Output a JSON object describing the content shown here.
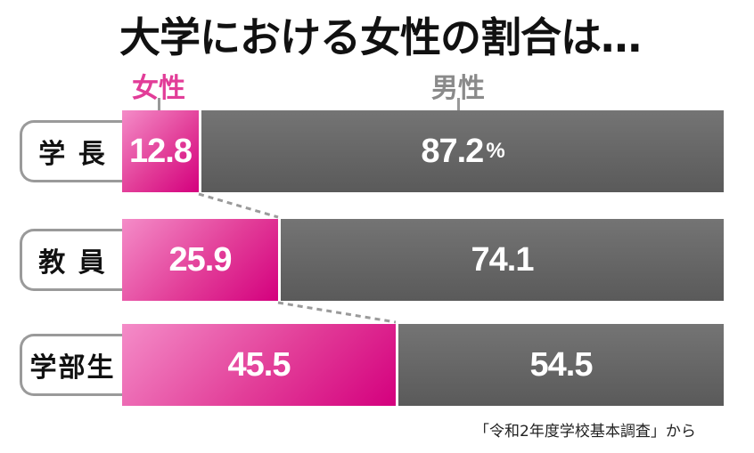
{
  "title": "大学における女性の割合は…",
  "legend": {
    "female": "女性",
    "male": "男性"
  },
  "colors": {
    "female": "#e23d98",
    "male": "#5e5e5e",
    "legend_male_text": "#8a8a8a"
  },
  "chart_data": {
    "type": "bar",
    "orientation": "horizontal-stacked-100",
    "categories": [
      "学 長",
      "教 員",
      "学部生"
    ],
    "series": [
      {
        "name": "女性",
        "values": [
          12.8,
          25.9,
          45.5
        ]
      },
      {
        "name": "男性",
        "values": [
          87.2,
          74.1,
          54.5
        ]
      }
    ],
    "labels": {
      "female": [
        "12.8",
        "25.9",
        "45.5"
      ],
      "male": [
        "87.2",
        "74.1",
        "54.5"
      ]
    },
    "unit": "%",
    "xlim": [
      0,
      100
    ]
  },
  "source": "「令和2年度学校基本調査」から"
}
